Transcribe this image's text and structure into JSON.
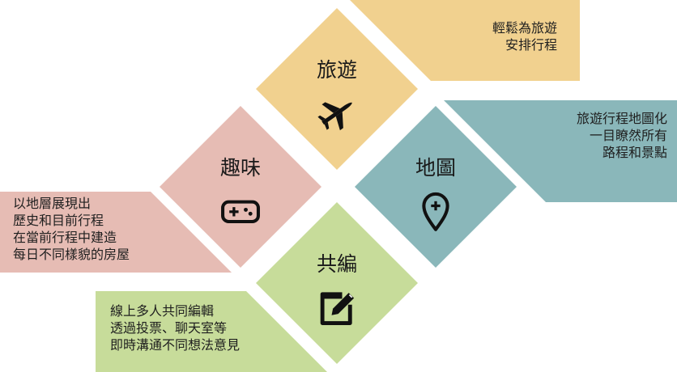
{
  "colors": {
    "travel": "#f1d18f",
    "map": "#8ab7ba",
    "fun": "#e6bcb4",
    "collab": "#c7dc9a",
    "text": "#1f1f1f"
  },
  "diamonds": {
    "travel": {
      "label": "旅遊",
      "icon": "airplane-icon"
    },
    "fun": {
      "label": "趣味",
      "icon": "gamepad-icon"
    },
    "map": {
      "label": "地圖",
      "icon": "map-pin-icon"
    },
    "collab": {
      "label": "共編",
      "icon": "edit-icon"
    }
  },
  "boxes": {
    "travel": [
      "輕鬆為旅遊",
      "安排行程"
    ],
    "map": [
      "旅遊行程地圖化",
      "一目瞭然所有",
      "路程和景點"
    ],
    "fun": [
      "以地層展現出",
      "歷史和目前行程",
      "在當前行程中建造",
      "每日不同樣貌的房屋"
    ],
    "collab": [
      "線上多人共同編輯",
      "透過投票、聊天室等",
      "即時溝通不同想法意見"
    ]
  }
}
